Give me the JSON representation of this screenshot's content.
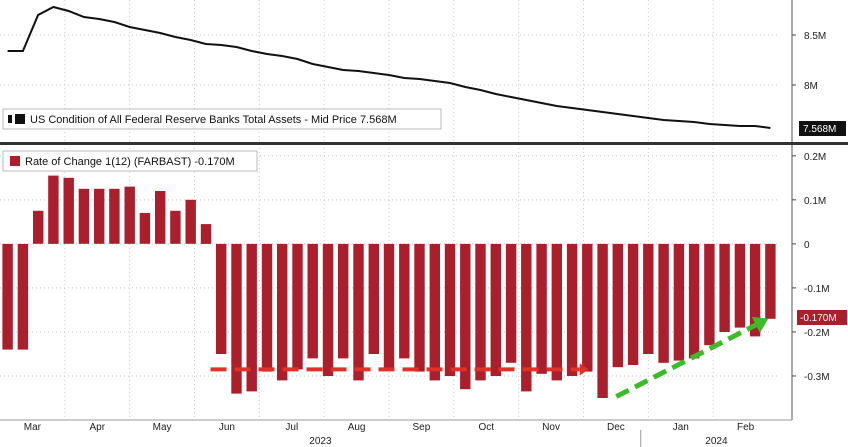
{
  "chart_data": [
    {
      "type": "line",
      "legend": "US Condition of All Federal Reserve Banks Total Assets - Mid Price 7.568M",
      "last_value_label": "7.568M",
      "y_ticks": [
        {
          "value": 8.5,
          "label": "8.5M"
        },
        {
          "value": 8.0,
          "label": "8M"
        }
      ],
      "ylim": [
        7.45,
        8.85
      ],
      "x": [
        0,
        1,
        2,
        3,
        4,
        5,
        6,
        7,
        8,
        9,
        10,
        11,
        12,
        13,
        14,
        15,
        16,
        17,
        18,
        19,
        20,
        21,
        22,
        23,
        24,
        25,
        26,
        27,
        28,
        29,
        30,
        31,
        32,
        33,
        34,
        35,
        36,
        37,
        38,
        39,
        40,
        41,
        42,
        43,
        44,
        45,
        46,
        47,
        48,
        49,
        50
      ],
      "values": [
        8.34,
        8.34,
        8.7,
        8.78,
        8.74,
        8.68,
        8.66,
        8.63,
        8.58,
        8.55,
        8.52,
        8.48,
        8.45,
        8.41,
        8.4,
        8.38,
        8.34,
        8.31,
        8.29,
        8.26,
        8.21,
        8.18,
        8.15,
        8.14,
        8.12,
        8.1,
        8.07,
        8.06,
        8.04,
        8.02,
        7.98,
        7.95,
        7.91,
        7.88,
        7.85,
        7.82,
        7.79,
        7.77,
        7.75,
        7.73,
        7.71,
        7.69,
        7.67,
        7.65,
        7.64,
        7.63,
        7.61,
        7.6,
        7.59,
        7.59,
        7.57
      ],
      "color": "#111111"
    },
    {
      "type": "bar",
      "legend": "Rate of Change 1(12) (FARBAST) -0.170M",
      "last_value_label": "-0.170M",
      "y_ticks": [
        {
          "value": 0.2,
          "label": "0.2M"
        },
        {
          "value": 0.1,
          "label": "0.1M"
        },
        {
          "value": 0,
          "label": "0"
        },
        {
          "value": -0.1,
          "label": "-0.1M"
        },
        {
          "value": -0.2,
          "label": "-0.2M"
        },
        {
          "value": -0.3,
          "label": "-0.3M"
        }
      ],
      "ylim": [
        -0.4,
        0.22
      ],
      "values": [
        -0.24,
        -0.24,
        0.075,
        0.155,
        0.15,
        0.125,
        0.125,
        0.125,
        0.13,
        0.07,
        0.12,
        0.075,
        0.1,
        0.045,
        -0.25,
        -0.34,
        -0.335,
        -0.29,
        -0.31,
        -0.285,
        -0.26,
        -0.3,
        -0.26,
        -0.31,
        -0.25,
        -0.285,
        -0.26,
        -0.29,
        -0.31,
        -0.3,
        -0.33,
        -0.31,
        -0.3,
        -0.27,
        -0.335,
        -0.295,
        -0.31,
        -0.3,
        -0.29,
        -0.35,
        -0.28,
        -0.275,
        -0.25,
        -0.27,
        -0.265,
        -0.26,
        -0.23,
        -0.2,
        -0.19,
        -0.21,
        -0.17
      ],
      "color": "#ab1e2c",
      "annotations": {
        "red_dashed_level": -0.285,
        "green_arrow_from": [
          44,
          -0.315
        ],
        "green_arrow_to": [
          50,
          -0.165
        ]
      }
    }
  ],
  "x_axis": {
    "months": [
      "Mar",
      "Apr",
      "May",
      "Jun",
      "Jul",
      "Aug",
      "Sep",
      "Oct",
      "Nov",
      "Dec",
      "Jan",
      "Feb"
    ],
    "years": [
      "2023",
      "2024"
    ]
  },
  "colors": {
    "line": "#111111",
    "bars": "#ab1e2c",
    "red_dash": "#e03126",
    "green_arrow": "#3bbd2b",
    "tag_top_bg": "#111111",
    "tag_bottom_bg": "#ab1e2c"
  }
}
